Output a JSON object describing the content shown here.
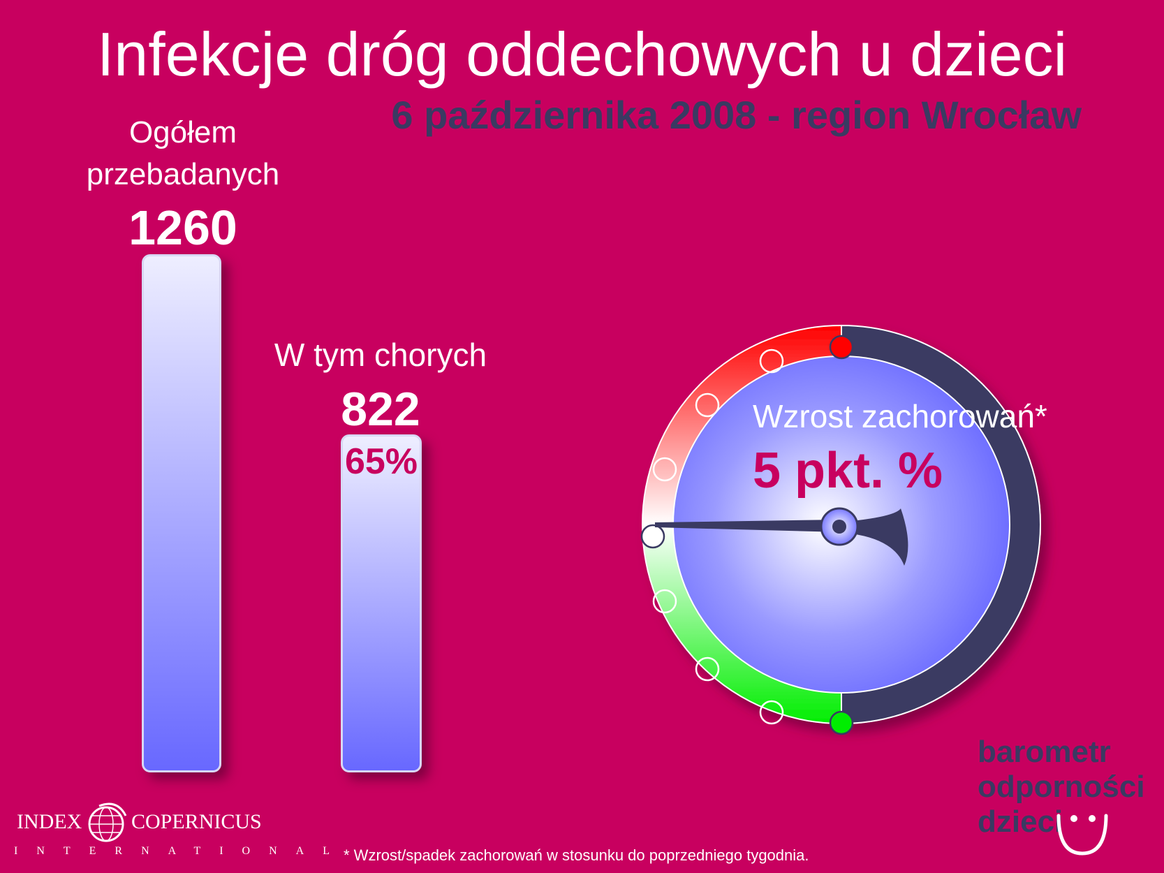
{
  "title": "Infekcje dróg oddechowych u dzieci",
  "subtitle": "6 października 2008 - region Wrocław",
  "total": {
    "label_line1": "Ogółem",
    "label_line2": "przebadanych",
    "value": "1260"
  },
  "sick": {
    "label": "W tym chorych",
    "value": "822",
    "percent": "65%"
  },
  "gauge": {
    "caption": "Wzrost zachorowań*",
    "value": "5 pkt. %",
    "colors": {
      "red": "#ff0000",
      "green": "#00ee00",
      "dark": "#3a3a62",
      "face": "#6a6aff"
    }
  },
  "logo": {
    "word1": "INDEX",
    "word2": "COPERNICUS",
    "sub": "INTERNATIONAL"
  },
  "brand": {
    "line1": "barometr",
    "line2": "odporności",
    "line3": "dzieci"
  },
  "footnote": "* Wzrost/spadek zachorowań w stosunku do poprzedniego tygodnia.",
  "colors": {
    "background": "#c8005f",
    "accent_dark": "#3a3a62",
    "bar_top": "#eeeeff",
    "bar_bottom": "#6868ff"
  }
}
